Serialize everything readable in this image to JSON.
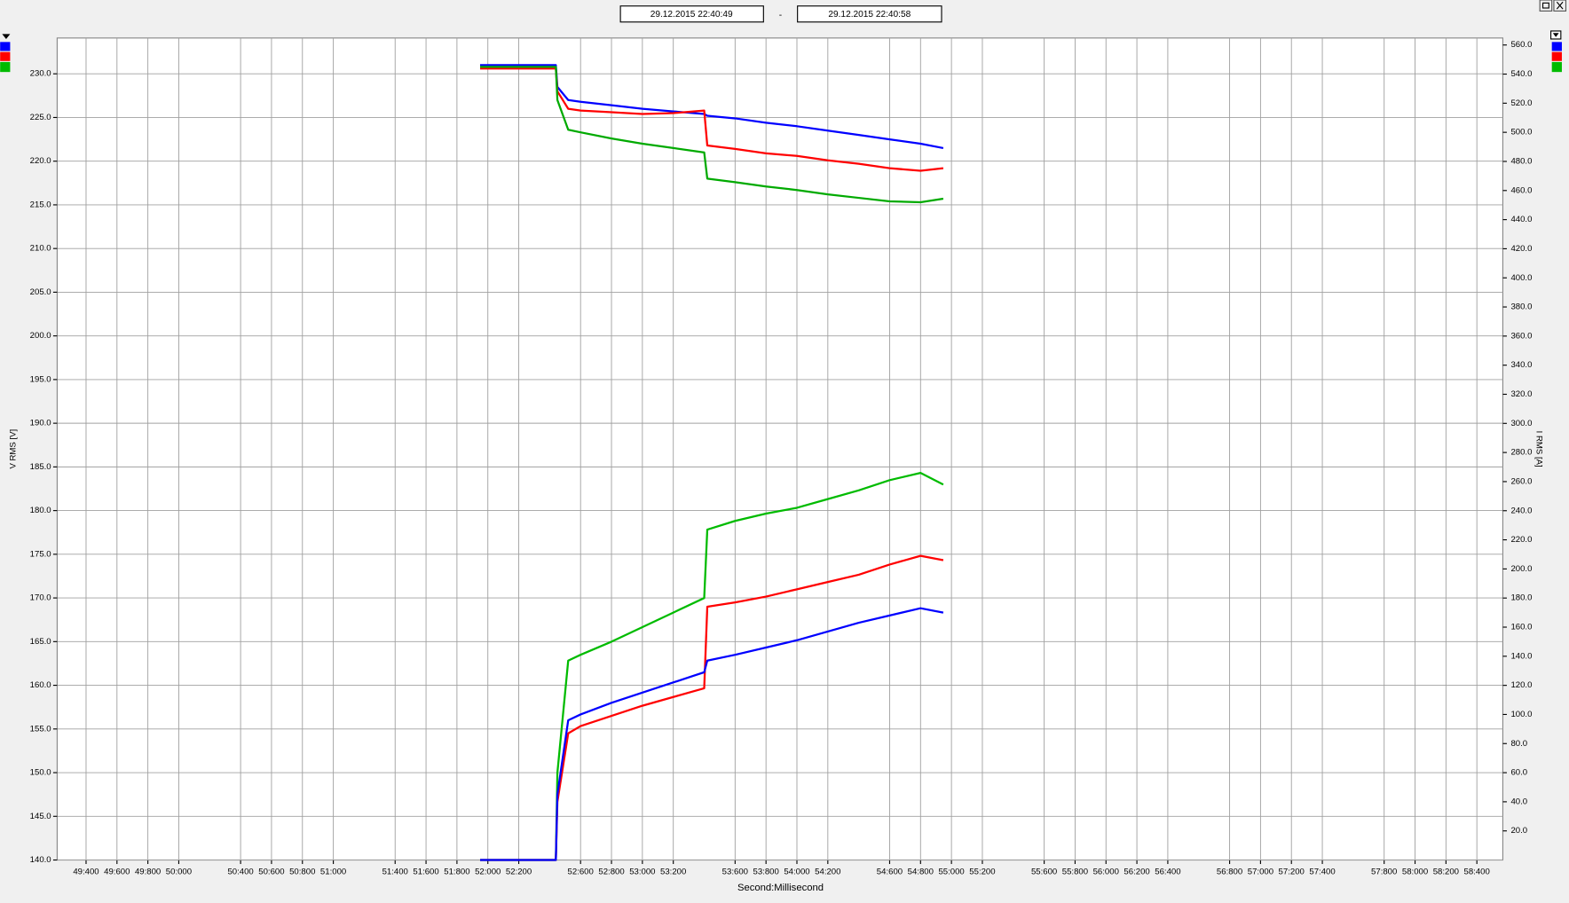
{
  "chart_data": {
    "type": "line",
    "date_from": "29.12.2015    22:40:49",
    "separator": "-",
    "date_to": "29.12.2015    22:40:58",
    "xlabel": "Second:Millisecond",
    "ylabel": "V RMS [V]",
    "y2label": "I RMS [A]",
    "grid": true,
    "xlim": [
      49213,
      58568
    ],
    "ylim": [
      140,
      234.1
    ],
    "y2lim": [
      0,
      564.8
    ],
    "xticks": [
      {
        "value": 49400,
        "label": "49:400"
      },
      {
        "value": 49600,
        "label": "49:600"
      },
      {
        "value": 49800,
        "label": "49:800"
      },
      {
        "value": 50000,
        "label": "50:000"
      },
      {
        "value": 50400,
        "label": "50:400"
      },
      {
        "value": 50600,
        "label": "50:600"
      },
      {
        "value": 50800,
        "label": "50:800"
      },
      {
        "value": 51000,
        "label": "51:000"
      },
      {
        "value": 51400,
        "label": "51:400"
      },
      {
        "value": 51600,
        "label": "51:600"
      },
      {
        "value": 51800,
        "label": "51:800"
      },
      {
        "value": 52000,
        "label": "52:000"
      },
      {
        "value": 52200,
        "label": "52:200"
      },
      {
        "value": 52600,
        "label": "52:600"
      },
      {
        "value": 52800,
        "label": "52:800"
      },
      {
        "value": 53000,
        "label": "53:000"
      },
      {
        "value": 53200,
        "label": "53:200"
      },
      {
        "value": 53600,
        "label": "53:600"
      },
      {
        "value": 53800,
        "label": "53:800"
      },
      {
        "value": 54000,
        "label": "54:000"
      },
      {
        "value": 54200,
        "label": "54:200"
      },
      {
        "value": 54600,
        "label": "54:600"
      },
      {
        "value": 54800,
        "label": "54:800"
      },
      {
        "value": 55000,
        "label": "55:000"
      },
      {
        "value": 55200,
        "label": "55:200"
      },
      {
        "value": 55600,
        "label": "55:600"
      },
      {
        "value": 55800,
        "label": "55:800"
      },
      {
        "value": 56000,
        "label": "56:000"
      },
      {
        "value": 56200,
        "label": "56:200"
      },
      {
        "value": 56400,
        "label": "56:400"
      },
      {
        "value": 56800,
        "label": "56:800"
      },
      {
        "value": 57000,
        "label": "57:000"
      },
      {
        "value": 57200,
        "label": "57:200"
      },
      {
        "value": 57400,
        "label": "57:400"
      },
      {
        "value": 57800,
        "label": "57:800"
      },
      {
        "value": 58000,
        "label": "58:000"
      },
      {
        "value": 58200,
        "label": "58:200"
      },
      {
        "value": 58400,
        "label": "58:400"
      }
    ],
    "yticks": [
      {
        "value": 140,
        "label": "140.0"
      },
      {
        "value": 145,
        "label": "145.0"
      },
      {
        "value": 150,
        "label": "150.0"
      },
      {
        "value": 155,
        "label": "155.0"
      },
      {
        "value": 160,
        "label": "160.0"
      },
      {
        "value": 165,
        "label": "165.0"
      },
      {
        "value": 170,
        "label": "170.0"
      },
      {
        "value": 175,
        "label": "175.0"
      },
      {
        "value": 180,
        "label": "180.0"
      },
      {
        "value": 185,
        "label": "185.0"
      },
      {
        "value": 190,
        "label": "190.0"
      },
      {
        "value": 195,
        "label": "195.0"
      },
      {
        "value": 200,
        "label": "200.0"
      },
      {
        "value": 205,
        "label": "205.0"
      },
      {
        "value": 210,
        "label": "210.0"
      },
      {
        "value": 215,
        "label": "215.0"
      },
      {
        "value": 220,
        "label": "220.0"
      },
      {
        "value": 225,
        "label": "225.0"
      },
      {
        "value": 230,
        "label": "230.0"
      }
    ],
    "y2ticks": [
      {
        "value": 20,
        "label": "20.0"
      },
      {
        "value": 40,
        "label": "40.0"
      },
      {
        "value": 60,
        "label": "60.0"
      },
      {
        "value": 80,
        "label": "80.0"
      },
      {
        "value": 100,
        "label": "100.0"
      },
      {
        "value": 120,
        "label": "120.0"
      },
      {
        "value": 140,
        "label": "140.0"
      },
      {
        "value": 160,
        "label": "160.0"
      },
      {
        "value": 180,
        "label": "180.0"
      },
      {
        "value": 200,
        "label": "200.0"
      },
      {
        "value": 220,
        "label": "220.0"
      },
      {
        "value": 240,
        "label": "240.0"
      },
      {
        "value": 260,
        "label": "260.0"
      },
      {
        "value": 280,
        "label": "280.0"
      },
      {
        "value": 300,
        "label": "300.0"
      },
      {
        "value": 320,
        "label": "320.0"
      },
      {
        "value": 340,
        "label": "340.0"
      },
      {
        "value": 360,
        "label": "360.0"
      },
      {
        "value": 380,
        "label": "380.0"
      },
      {
        "value": 400,
        "label": "400.0"
      },
      {
        "value": 420,
        "label": "420.0"
      },
      {
        "value": 440,
        "label": "440.0"
      },
      {
        "value": 460,
        "label": "460.0"
      },
      {
        "value": 480,
        "label": "480.0"
      },
      {
        "value": 500,
        "label": "500.0"
      },
      {
        "value": 520,
        "label": "520.0"
      },
      {
        "value": 540,
        "label": "540.0"
      },
      {
        "value": 560,
        "label": "560.0"
      }
    ],
    "x": [
      51950,
      52440,
      52450,
      52520,
      52600,
      52800,
      53000,
      53200,
      53400,
      53420,
      53600,
      53800,
      54000,
      54200,
      54400,
      54600,
      54800,
      54947
    ],
    "series": [
      {
        "color": "#0000ff",
        "axis": "y",
        "values": [
          231.0,
          231.0,
          228.5,
          227.0,
          226.8,
          226.4,
          226.0,
          225.7,
          225.4,
          225.2,
          224.9,
          224.4,
          224.0,
          223.5,
          223.0,
          222.5,
          222.0,
          221.5
        ]
      },
      {
        "color": "#ff0000",
        "axis": "y",
        "values": [
          230.6,
          230.6,
          228.0,
          226.0,
          225.8,
          225.6,
          225.4,
          225.5,
          225.8,
          221.8,
          221.4,
          220.9,
          220.6,
          220.1,
          219.7,
          219.2,
          218.9,
          219.2
        ]
      },
      {
        "color": "#00aa00",
        "axis": "y",
        "values": [
          230.8,
          230.8,
          227.0,
          223.6,
          223.3,
          222.6,
          222.0,
          221.5,
          221.0,
          218.0,
          217.6,
          217.1,
          216.7,
          216.2,
          215.8,
          215.4,
          215.3,
          215.7
        ]
      },
      {
        "color": "#00bb00",
        "axis": "y2",
        "values": [
          0,
          0,
          60,
          137,
          141,
          150,
          160,
          170,
          180,
          227,
          233,
          238,
          242,
          248,
          254,
          261,
          266,
          258
        ]
      },
      {
        "color": "#ff0000",
        "axis": "y2",
        "values": [
          0,
          0,
          40,
          87,
          92,
          99,
          106,
          112,
          118,
          174,
          177,
          181,
          186,
          191,
          196,
          203,
          209,
          206
        ]
      },
      {
        "color": "#0000ff",
        "axis": "y2",
        "values": [
          0,
          0,
          45,
          96,
          100,
          108,
          115,
          122,
          129,
          137,
          141,
          146,
          151,
          157,
          163,
          168,
          173,
          170
        ]
      }
    ]
  }
}
